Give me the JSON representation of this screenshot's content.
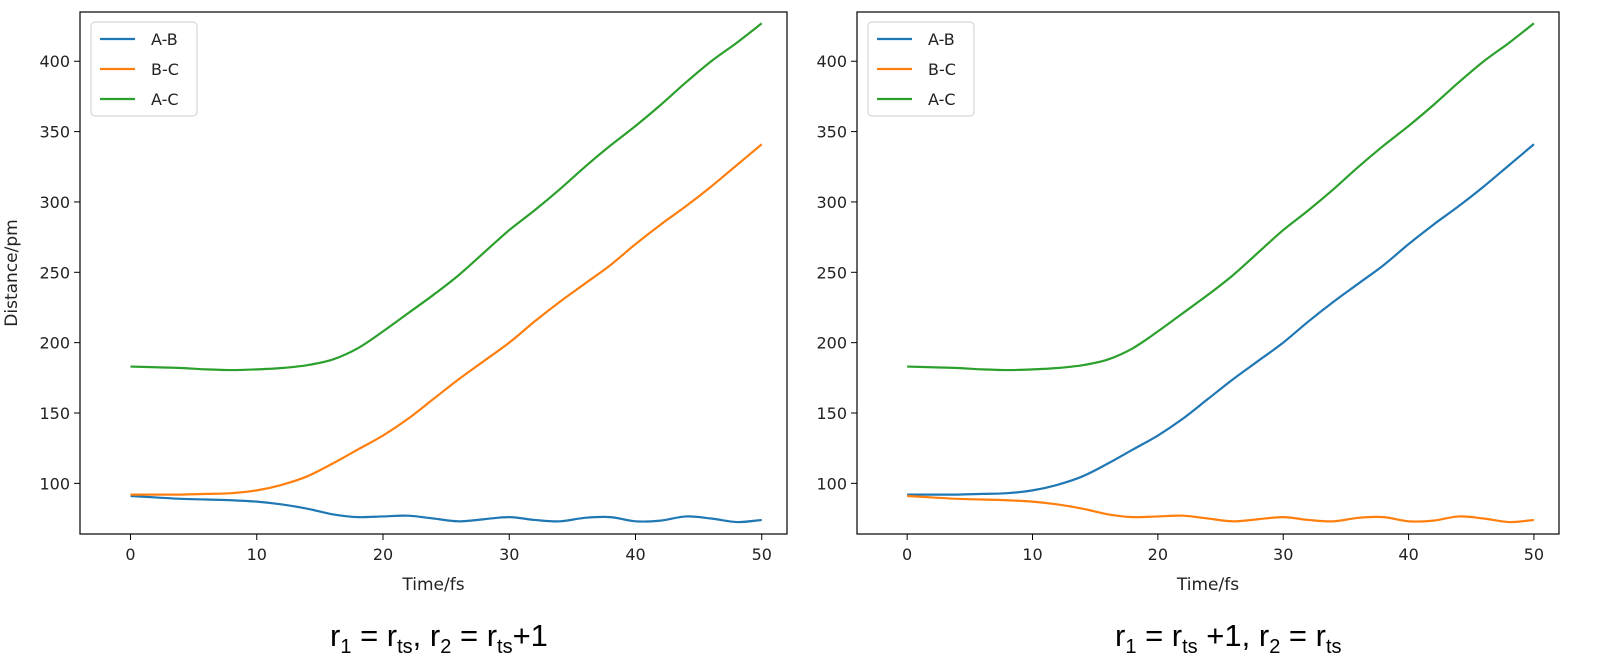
{
  "colors": {
    "A-B": "#1f77b4",
    "B-C": "#ff7f0e",
    "A-C": "#2ca02c"
  },
  "chart_data": [
    {
      "type": "line",
      "xlabel": "Time/fs",
      "ylabel": "Distance/pm",
      "xlim": [
        -4,
        52
      ],
      "ylim": [
        64,
        435
      ],
      "xticks": [
        0,
        10,
        20,
        30,
        40,
        50
      ],
      "yticks": [
        100,
        150,
        200,
        250,
        300,
        350,
        400
      ],
      "legend": "top-left",
      "x": [
        0,
        2,
        4,
        6,
        8,
        10,
        12,
        14,
        16,
        18,
        20,
        22,
        24,
        26,
        28,
        30,
        32,
        34,
        36,
        38,
        40,
        42,
        44,
        46,
        48,
        50
      ],
      "series": [
        {
          "name": "A-B",
          "values": [
            91,
            90,
            89,
            88.5,
            88,
            87,
            85,
            82,
            78,
            76,
            76.5,
            77,
            75,
            73,
            74.5,
            76,
            74,
            73,
            75.5,
            76,
            73,
            73.5,
            76.5,
            75,
            72.5,
            74
          ]
        },
        {
          "name": "B-C",
          "values": [
            92,
            92,
            92,
            92.5,
            93,
            95,
            99,
            105,
            114,
            124,
            134,
            146,
            160,
            174,
            187,
            200,
            215,
            229,
            242,
            255,
            270,
            284,
            297,
            311,
            326,
            341
          ]
        },
        {
          "name": "A-C",
          "values": [
            183,
            182.5,
            182,
            181,
            180.5,
            181,
            182,
            184,
            188,
            196,
            208,
            221,
            234,
            248,
            264,
            280,
            294,
            309,
            325,
            340,
            354,
            369,
            385,
            400,
            413,
            427
          ]
        }
      ],
      "caption": {
        "r1": "r",
        "r1_sub": "1",
        "eq1": " = r",
        "rts1_sub": "ts",
        "comma": ", ",
        "r2": "r",
        "r2_sub": "2",
        "eq2": " = r",
        "rts2_sub": "ts",
        "tail": "+1"
      }
    },
    {
      "type": "line",
      "xlabel": "Time/fs",
      "ylabel": "",
      "xlim": [
        -4,
        52
      ],
      "ylim": [
        64,
        435
      ],
      "xticks": [
        0,
        10,
        20,
        30,
        40,
        50
      ],
      "yticks": [
        100,
        150,
        200,
        250,
        300,
        350,
        400
      ],
      "legend": "top-left",
      "x": [
        0,
        2,
        4,
        6,
        8,
        10,
        12,
        14,
        16,
        18,
        20,
        22,
        24,
        26,
        28,
        30,
        32,
        34,
        36,
        38,
        40,
        42,
        44,
        46,
        48,
        50
      ],
      "series": [
        {
          "name": "A-B",
          "values": [
            92,
            92,
            92,
            92.5,
            93,
            95,
            99,
            105,
            114,
            124,
            134,
            146,
            160,
            174,
            187,
            200,
            215,
            229,
            242,
            255,
            270,
            284,
            297,
            311,
            326,
            341
          ]
        },
        {
          "name": "B-C",
          "values": [
            91,
            90,
            89,
            88.5,
            88,
            87,
            85,
            82,
            78,
            76,
            76.5,
            77,
            75,
            73,
            74.5,
            76,
            74,
            73,
            75.5,
            76,
            73,
            73.5,
            76.5,
            75,
            72.5,
            74
          ]
        },
        {
          "name": "A-C",
          "values": [
            183,
            182.5,
            182,
            181,
            180.5,
            181,
            182,
            184,
            188,
            196,
            208,
            221,
            234,
            248,
            264,
            280,
            294,
            309,
            325,
            340,
            354,
            369,
            385,
            400,
            413,
            427
          ]
        }
      ],
      "caption": {
        "r1": "r",
        "r1_sub": "1",
        "eq1": " = r",
        "rts1_sub": "ts",
        "mid": " +1, ",
        "r2": "r",
        "r2_sub": "2",
        "eq2": " = r",
        "rts2_sub": "ts"
      }
    }
  ]
}
